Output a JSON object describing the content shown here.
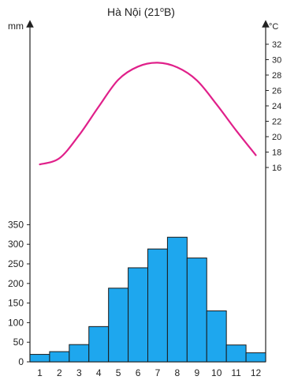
{
  "chart_data": {
    "type": "bar+line",
    "title": "Hà Nội (21ºB)",
    "title_main": "Hà Nội (21",
    "title_sup": "o",
    "title_end": "B)",
    "left_axis_label": "mm",
    "right_axis_label": "°C",
    "categories": [
      "1",
      "2",
      "3",
      "4",
      "5",
      "6",
      "7",
      "8",
      "9",
      "10",
      "11",
      "12"
    ],
    "precipitation_mm": [
      19,
      26,
      44,
      90,
      188,
      240,
      288,
      318,
      265,
      130,
      43,
      23
    ],
    "temperature_c": [
      16.4,
      17.2,
      20.2,
      23.9,
      27.4,
      29.1,
      29.6,
      29.0,
      27.3,
      24.2,
      20.8,
      17.6
    ],
    "left_ticks": [
      0,
      50,
      100,
      150,
      200,
      250,
      300,
      350
    ],
    "right_ticks": [
      16,
      18,
      20,
      22,
      24,
      26,
      28,
      30,
      32
    ],
    "left_ylim": [
      0,
      350
    ],
    "right_ylim": [
      16,
      32
    ],
    "bar_color": "#1ea7ee",
    "line_color": "#e0208a"
  }
}
